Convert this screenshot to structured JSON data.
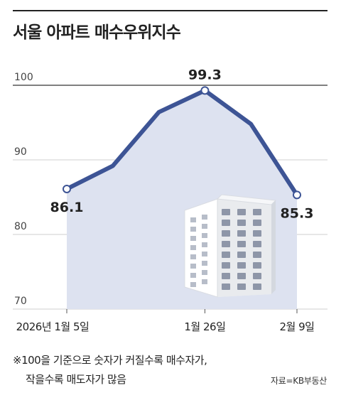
{
  "header": {
    "title": "서울 아파트 매수우위지수"
  },
  "chart_data": {
    "type": "area",
    "title": "서울 아파트 매수우위지수",
    "xlabel": "",
    "ylabel": "",
    "ylim": [
      70,
      100
    ],
    "y_ticks": [
      "100",
      "90",
      "80",
      "70"
    ],
    "x_tick_labels": [
      "2026년 1월 5일",
      "1월 26일",
      "2월 9일"
    ],
    "series": [
      {
        "points": [
          {
            "date": "2026-01-05",
            "value": 86.1
          },
          {
            "date": "2026-01-12",
            "value": 89.2
          },
          {
            "date": "2026-01-19",
            "value": 96.4
          },
          {
            "date": "2026-01-26",
            "value": 99.3
          },
          {
            "date": "2026-02-02",
            "value": 94.8
          },
          {
            "date": "2026-02-09",
            "value": 85.3
          }
        ]
      }
    ],
    "data_labels": [
      "86.1",
      "99.3",
      "85.3"
    ],
    "grid": true,
    "colors": {
      "line": "#3d5495",
      "area": "#dde2f0",
      "grid": "#cfcfcf",
      "marker_fill": "#ffffff"
    }
  },
  "footer": {
    "note_line1": "※100을 기준으로 숫자가 커질수록 매수자가,",
    "note_line2": "작을수록 매도자가 많음",
    "source": "자료=KB부동산"
  }
}
